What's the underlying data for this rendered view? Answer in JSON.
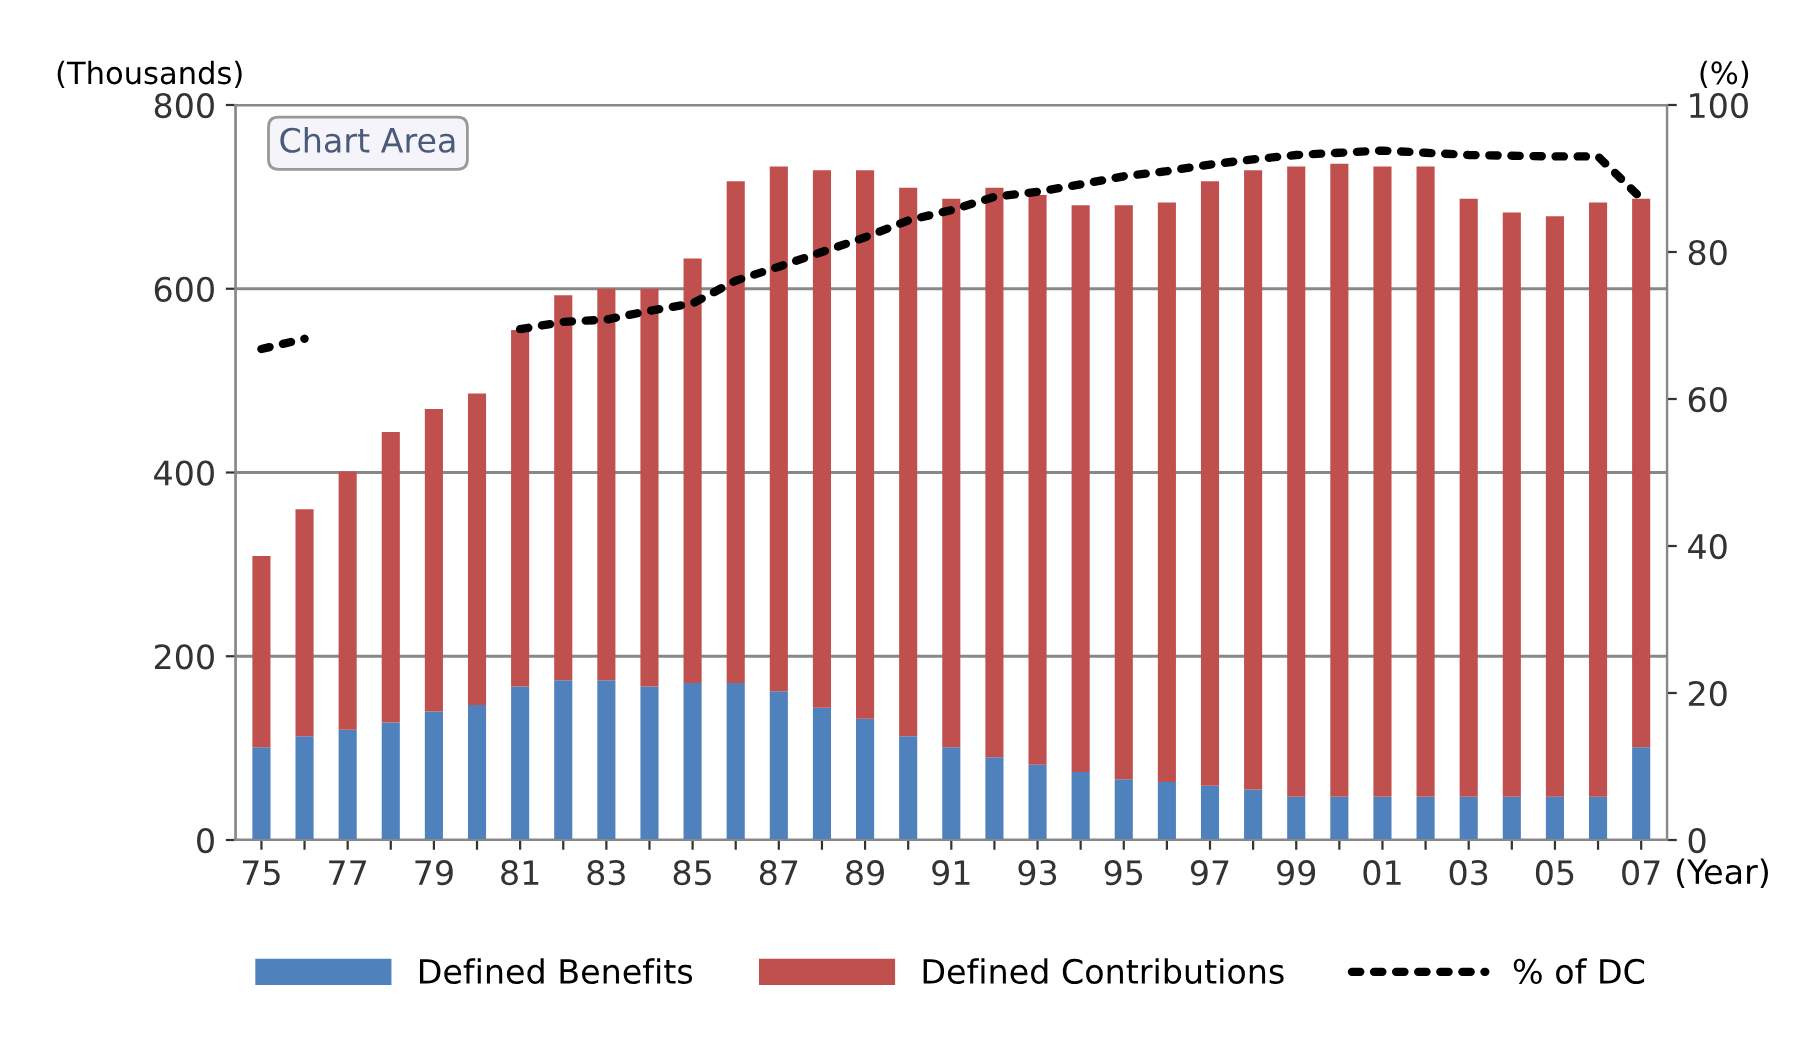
{
  "chart_data": {
    "type": "bar",
    "stacked": true,
    "ylabel": "(Thousands)",
    "y2label": "(%)",
    "xlabel": "(Year)",
    "categories": [
      "75",
      null,
      "77",
      null,
      "79",
      null,
      "81",
      null,
      "83",
      null,
      "85",
      null,
      "87",
      null,
      "89",
      null,
      "91",
      null,
      "93",
      null,
      "95",
      null,
      "97",
      null,
      "99",
      null,
      "01",
      null,
      "03",
      null,
      "05",
      null,
      "07"
    ],
    "series": [
      {
        "name": "Defined Benefits",
        "color": "#4f81bd",
        "values": [
          101,
          113,
          120,
          128,
          140,
          147,
          167,
          174,
          174,
          167,
          171,
          171,
          162,
          144,
          132,
          113,
          101,
          90,
          82,
          74,
          66,
          63,
          59,
          55,
          47,
          47,
          47,
          47,
          47,
          47,
          47,
          47,
          101
        ]
      },
      {
        "name": "Defined Contributions",
        "color": "#c0504d",
        "values": [
          208,
          247,
          281,
          316,
          329,
          339,
          388,
          419,
          426,
          433,
          462,
          546,
          571,
          585,
          597,
          597,
          597,
          620,
          620,
          617,
          625,
          631,
          658,
          674,
          686,
          689,
          686,
          686,
          651,
          636,
          632,
          647,
          597
        ]
      },
      {
        "name": "% of DC",
        "type": "line",
        "axis": "y2",
        "color": "#000000",
        "line_style": "dotted",
        "marker": "none",
        "values": [
          66.8,
          68.2,
          null,
          null,
          null,
          null,
          69.5,
          70.5,
          70.8,
          72,
          73,
          76.1,
          78,
          80,
          82,
          84.3,
          85.7,
          87.5,
          88.2,
          89.2,
          90.3,
          91,
          91.9,
          92.6,
          93.2,
          93.5,
          93.8,
          93.5,
          93.2,
          93.1,
          93,
          93,
          87.3
        ]
      }
    ],
    "ylim": [
      0,
      800
    ],
    "yticks": [
      0,
      200,
      400,
      600,
      800
    ],
    "y2lim": [
      0,
      100
    ],
    "y2ticks": [
      0,
      20,
      40,
      60,
      80,
      100
    ],
    "grid": "y",
    "legend": "bottom",
    "annotations": [
      "Chart Area"
    ]
  }
}
